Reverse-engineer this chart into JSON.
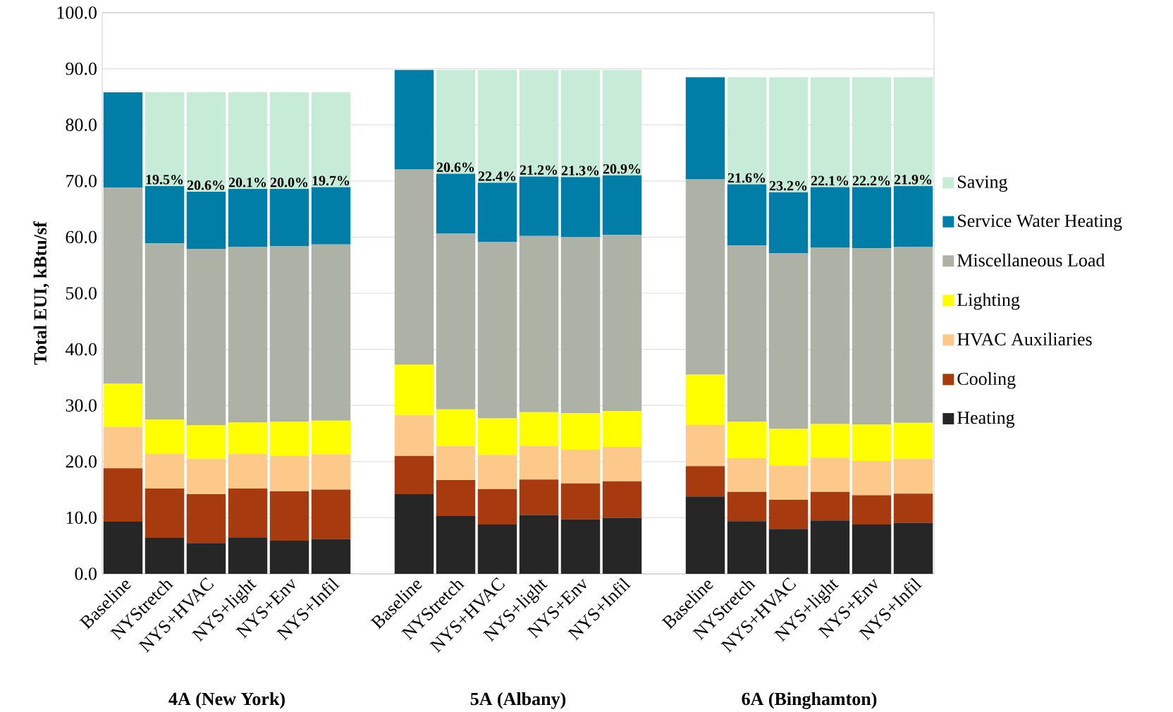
{
  "chart_data": {
    "type": "bar",
    "stacked": true,
    "ylabel": "Total EUI, kBtu/sf",
    "categories": [
      "Baseline",
      "NYStretch",
      "NYS+HVAC",
      "NYS+light",
      "NYS+Env",
      "NYS+Infil",
      null,
      "Baseline",
      "NYStretch",
      "NYS+HVAC",
      "NYS+light",
      "NYS+Env",
      "NYS+Infil",
      null,
      "Baseline",
      "NYStretch",
      "NYS+HVAC",
      "NYS+light",
      "NYS+Env",
      "NYS+Infil"
    ],
    "series": [
      {
        "name": "Heating",
        "color": "#262626",
        "values": [
          9.3,
          6.4,
          5.5,
          6.5,
          5.9,
          6.2,
          null,
          14.2,
          10.3,
          8.8,
          10.5,
          9.7,
          10.0,
          null,
          13.8,
          9.4,
          8.0,
          9.5,
          8.8,
          9.1
        ]
      },
      {
        "name": "Cooling",
        "color": "#a83a10",
        "values": [
          9.5,
          8.8,
          8.7,
          8.7,
          8.8,
          8.8,
          null,
          6.8,
          6.4,
          6.3,
          6.3,
          6.4,
          6.5,
          null,
          5.4,
          5.2,
          5.2,
          5.1,
          5.2,
          5.2
        ]
      },
      {
        "name": "HVAC Auxiliaries",
        "color": "#fdc98a",
        "values": [
          7.4,
          6.2,
          6.3,
          6.2,
          6.3,
          6.3,
          null,
          7.3,
          6.1,
          6.1,
          6.0,
          6.0,
          6.1,
          null,
          7.3,
          6.0,
          6.1,
          6.1,
          6.1,
          6.2
        ]
      },
      {
        "name": "Lighting",
        "color": "#ffff00",
        "values": [
          7.7,
          6.1,
          6.0,
          5.6,
          6.1,
          6.0,
          null,
          9.0,
          6.5,
          6.5,
          6.0,
          6.5,
          6.4,
          null,
          9.0,
          6.5,
          6.5,
          6.0,
          6.5,
          6.4
        ]
      },
      {
        "name": "Miscellaneous Load",
        "color": "#adb1a6",
        "values": [
          34.9,
          31.4,
          31.4,
          31.3,
          31.3,
          31.4,
          null,
          34.8,
          31.3,
          31.4,
          31.4,
          31.4,
          31.4,
          null,
          34.8,
          31.4,
          31.3,
          31.4,
          31.4,
          31.4
        ]
      },
      {
        "name": "Service Water Heating",
        "color": "#007ea8",
        "values": [
          17.0,
          10.2,
          10.2,
          10.3,
          10.2,
          10.2,
          null,
          17.7,
          10.7,
          10.6,
          10.6,
          10.7,
          10.6,
          null,
          18.2,
          10.9,
          10.9,
          10.8,
          10.9,
          10.8
        ]
      },
      {
        "name": "Saving",
        "color": "#c6ebd6",
        "values": [
          null,
          16.7,
          17.7,
          17.2,
          17.2,
          16.9,
          null,
          null,
          18.5,
          20.1,
          19.0,
          19.1,
          18.8,
          null,
          null,
          19.1,
          20.5,
          19.6,
          19.6,
          19.4
        ]
      }
    ],
    "ylim": [
      0,
      100
    ],
    "yticks": [
      {
        "value": 0,
        "label": "0.0"
      },
      {
        "value": 10,
        "label": "10.0"
      },
      {
        "value": 20,
        "label": "20.0"
      },
      {
        "value": 30,
        "label": "30.0"
      },
      {
        "value": 40,
        "label": "40.0"
      },
      {
        "value": 50,
        "label": "50.0"
      },
      {
        "value": 60,
        "label": "60.0"
      },
      {
        "value": 70,
        "label": "70.0"
      },
      {
        "value": 80,
        "label": "80.0"
      },
      {
        "value": 90,
        "label": "90.0"
      },
      {
        "value": 100,
        "label": "100.0"
      }
    ],
    "grid": "y",
    "legend": "right",
    "annotations": [
      "4A   (New York)",
      "5A  (Albany)",
      "6A (Binghamton)",
      "19.5%",
      "20.6%",
      "20.1%",
      "20.0%",
      "19.7%",
      "20.6%",
      "22.4%",
      "21.2%",
      "21.3%",
      "20.9%",
      "21.6%",
      "23.2%",
      "22.1%",
      "22.2%",
      "21.9%"
    ]
  }
}
